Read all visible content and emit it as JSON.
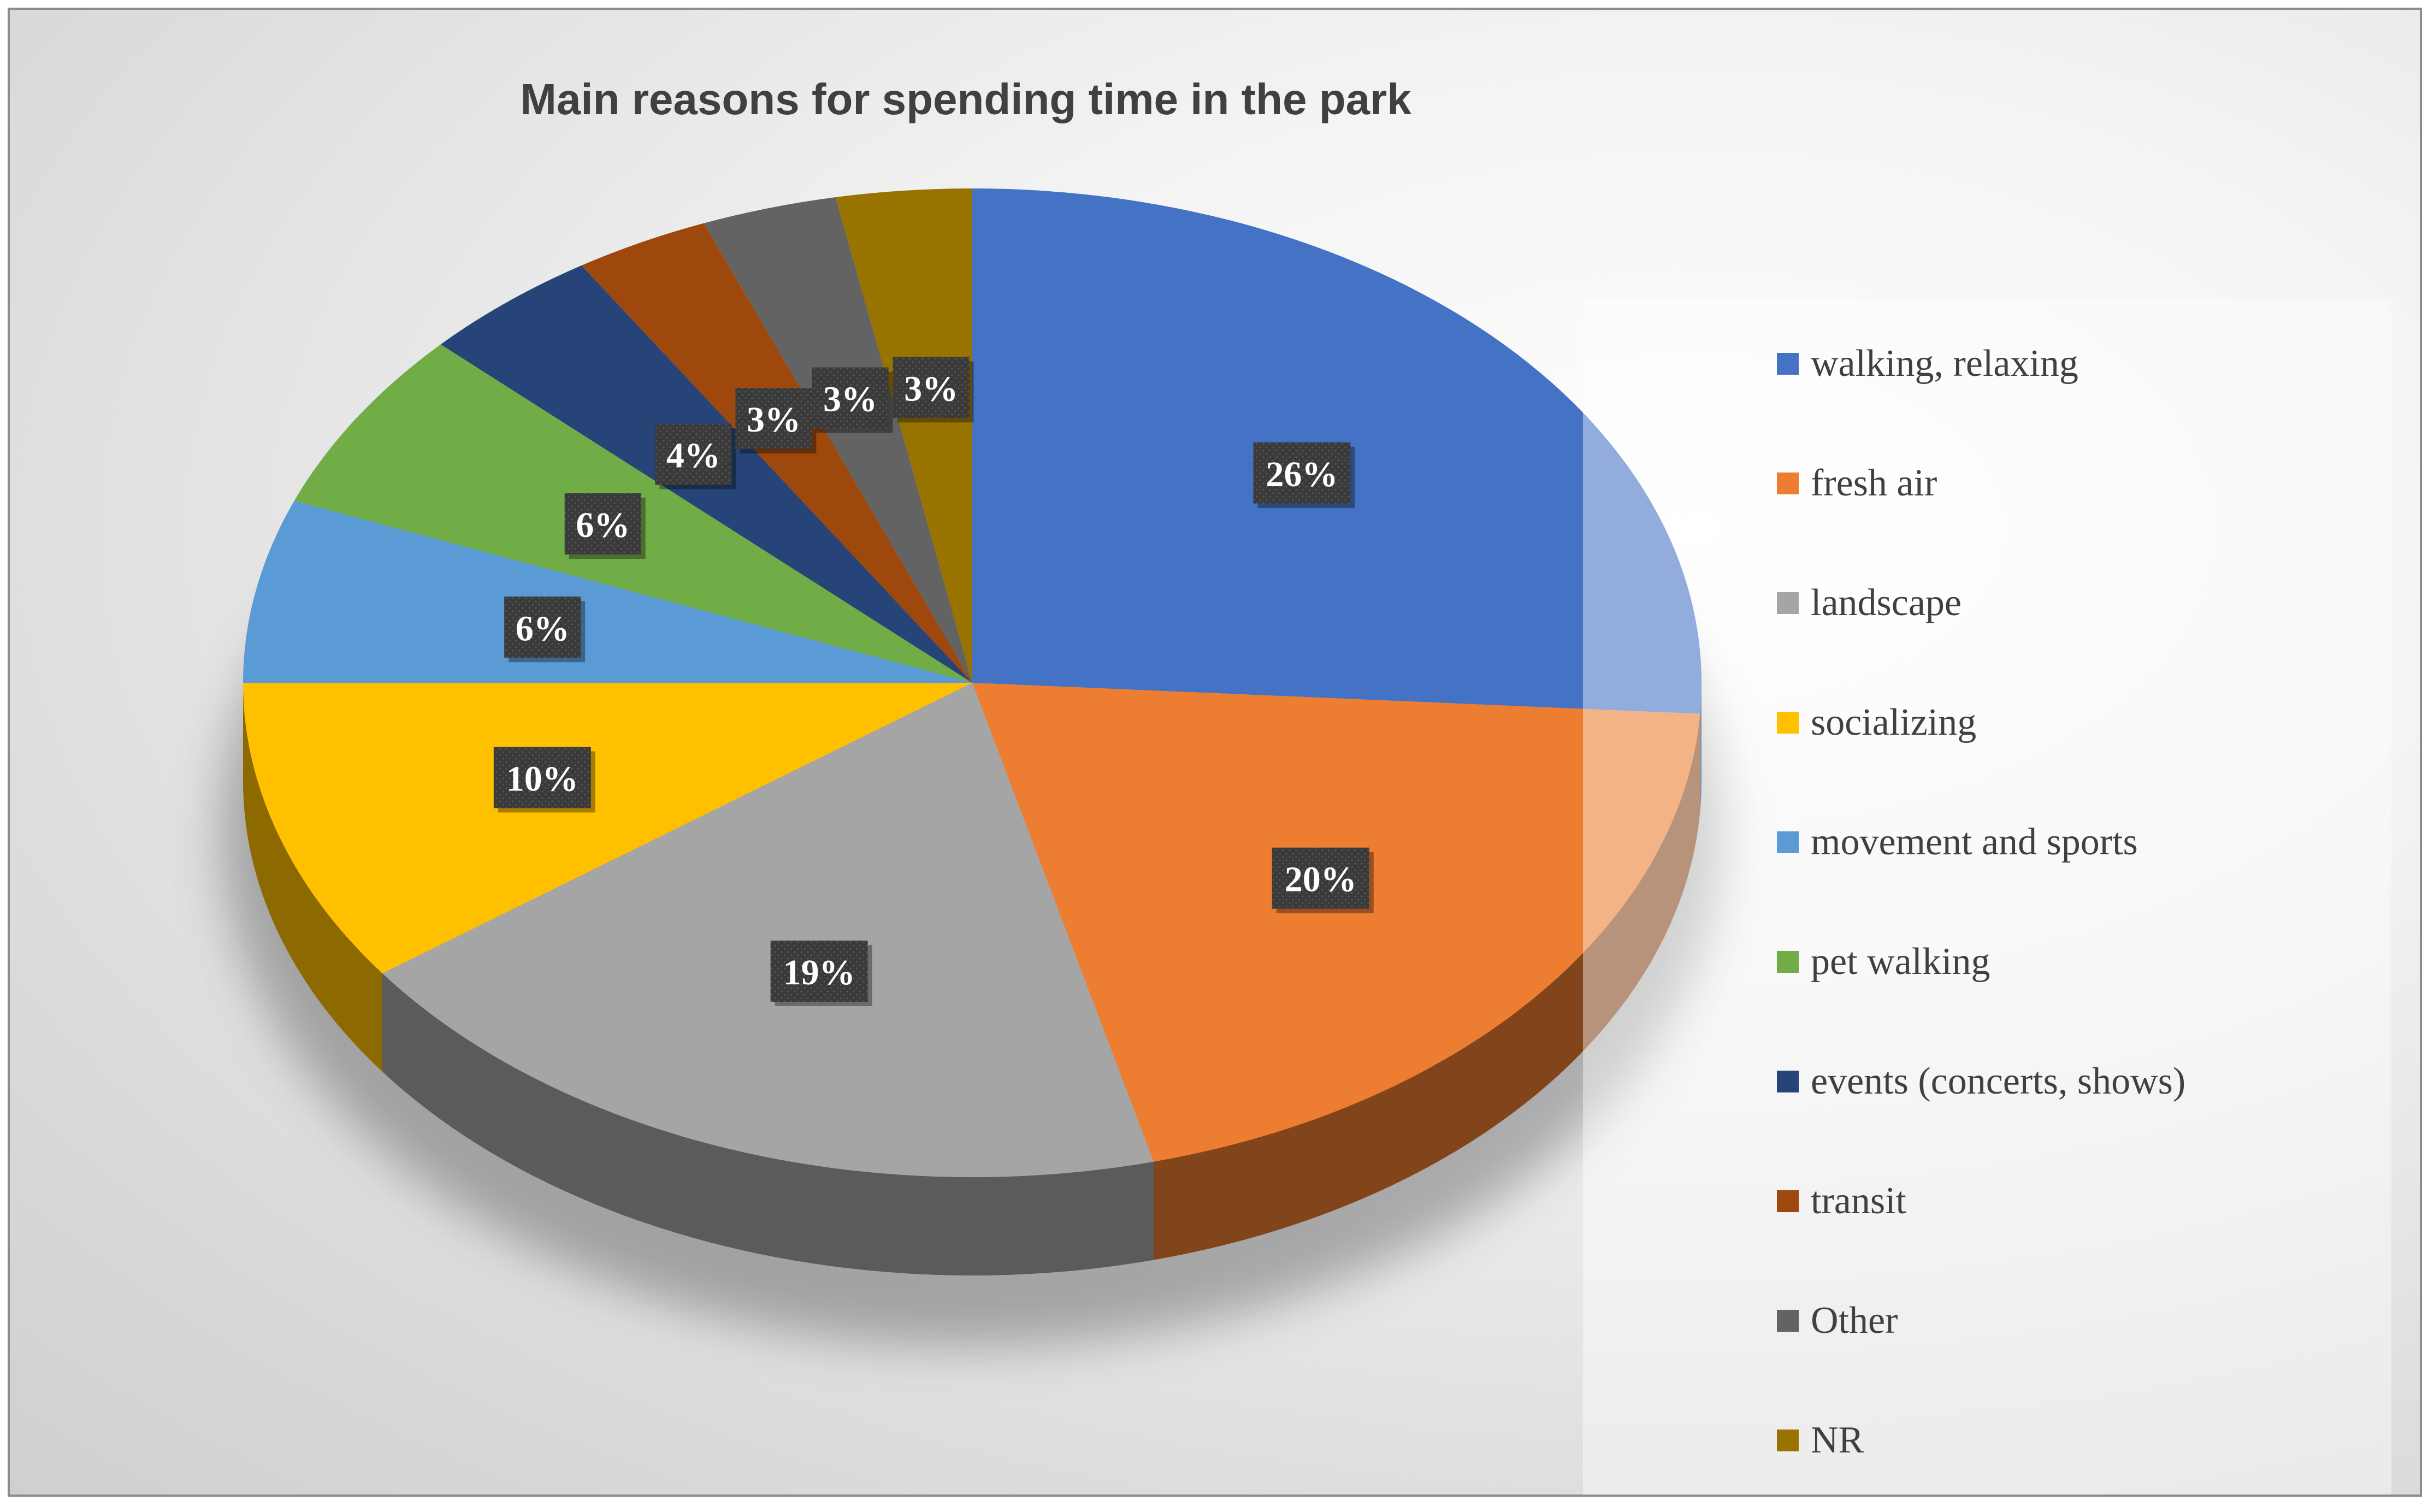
{
  "chart_data": {
    "type": "pie",
    "title": "Main reasons for spending time in the park",
    "labels": [
      "walking, relaxing",
      "fresh air",
      "landscape",
      "socializing",
      "movement and sports",
      "pet walking",
      "events (concerts, shows)",
      "transit",
      "Other",
      "NR"
    ],
    "values": [
      26,
      20,
      19,
      10,
      6,
      6,
      4,
      3,
      3,
      3
    ],
    "data_labels": [
      "26%",
      "20%",
      "19%",
      "10%",
      "6%",
      "6%",
      "4%",
      "3%",
      "3%",
      "3%"
    ],
    "colors": [
      "#4472C4",
      "#ED7D31",
      "#A5A5A5",
      "#FFC000",
      "#5B9BD5",
      "#70AD47",
      "#264478",
      "#9E480E",
      "#636363",
      "#997300"
    ],
    "legend_position": "right",
    "style": "3d"
  }
}
